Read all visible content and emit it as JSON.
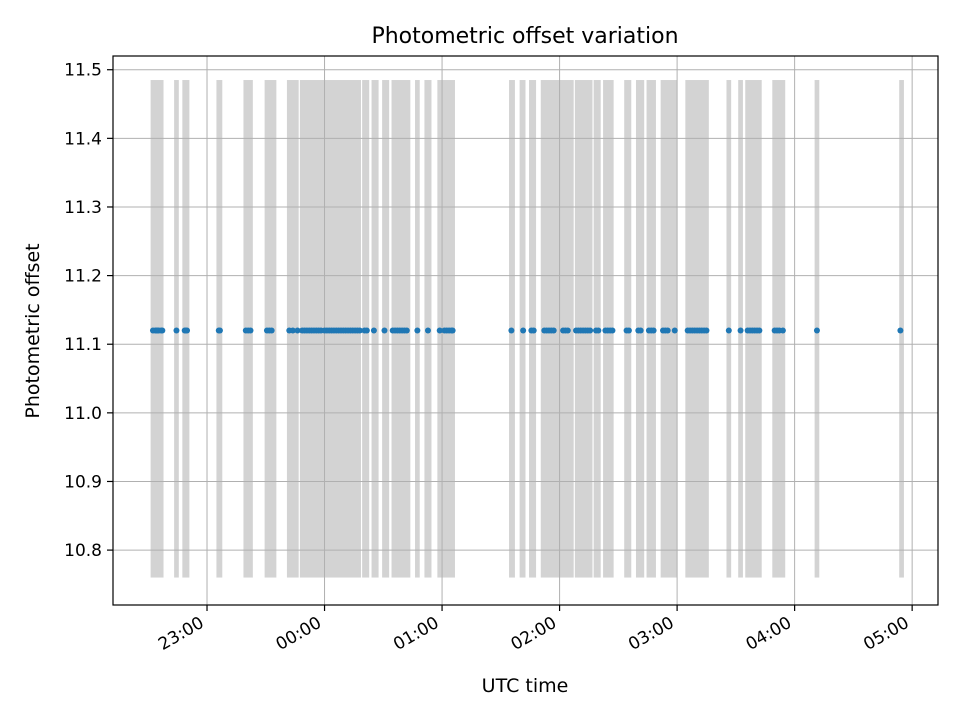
{
  "chart_data": {
    "type": "scatter",
    "title": "Photometric offset variation",
    "xlabel": "UTC time",
    "ylabel": "Photometric offset",
    "x_tick_labels": [
      "23:00",
      "00:00",
      "01:00",
      "02:00",
      "03:00",
      "04:00",
      "05:00"
    ],
    "y_tick_labels": [
      "10.8",
      "10.9",
      "11.0",
      "11.1",
      "11.2",
      "11.3",
      "11.4",
      "11.5"
    ],
    "x_ticks_hours": [
      23,
      24,
      25,
      26,
      27,
      28,
      29
    ],
    "y_ticks": [
      10.8,
      10.9,
      11.0,
      11.1,
      11.2,
      11.3,
      11.4,
      11.5
    ],
    "xlim_hours": [
      22.2,
      29.22
    ],
    "ylim": [
      10.72,
      11.52
    ],
    "band_y_range": [
      10.76,
      11.485
    ],
    "grid": true,
    "marker_color": "#1f77b4",
    "band_color": "#d3d3d3",
    "bands": [
      [
        22.52,
        22.63
      ],
      [
        22.72,
        22.76
      ],
      [
        22.79,
        22.85
      ],
      [
        23.08,
        23.13
      ],
      [
        23.31,
        23.39
      ],
      [
        23.49,
        23.59
      ],
      [
        23.68,
        23.78
      ],
      [
        23.79,
        24.31
      ],
      [
        24.32,
        24.38
      ],
      [
        24.4,
        24.46
      ],
      [
        24.49,
        24.55
      ],
      [
        24.57,
        24.73
      ],
      [
        24.77,
        24.81
      ],
      [
        24.85,
        24.91
      ],
      [
        24.96,
        25.11
      ],
      [
        25.57,
        25.62
      ],
      [
        25.66,
        25.71
      ],
      [
        25.74,
        25.8
      ],
      [
        25.84,
        26.12
      ],
      [
        26.13,
        26.28
      ],
      [
        26.29,
        26.35
      ],
      [
        26.37,
        26.46
      ],
      [
        26.55,
        26.61
      ],
      [
        26.65,
        26.72
      ],
      [
        26.74,
        26.82
      ],
      [
        26.86,
        27.0
      ],
      [
        27.07,
        27.27
      ],
      [
        27.42,
        27.46
      ],
      [
        27.52,
        27.56
      ],
      [
        27.58,
        27.72
      ],
      [
        27.81,
        27.92
      ],
      [
        28.17,
        28.21
      ],
      [
        28.89,
        28.93
      ]
    ],
    "x_hours": [
      22.54,
      22.56,
      22.57,
      22.58,
      22.59,
      22.61,
      22.62,
      22.74,
      22.81,
      22.82,
      22.83,
      23.1,
      23.11,
      23.33,
      23.35,
      23.37,
      23.51,
      23.53,
      23.55,
      23.7,
      23.73,
      23.77,
      23.81,
      23.83,
      23.85,
      23.87,
      23.89,
      23.91,
      23.93,
      23.95,
      23.97,
      24.0,
      24.02,
      24.04,
      24.06,
      24.08,
      24.1,
      24.12,
      24.14,
      24.16,
      24.18,
      24.2,
      24.22,
      24.24,
      24.26,
      24.28,
      24.3,
      24.34,
      24.36,
      24.42,
      24.51,
      24.58,
      24.6,
      24.62,
      24.64,
      24.66,
      24.68,
      24.7,
      24.79,
      24.88,
      24.98,
      25.02,
      25.04,
      25.06,
      25.08,
      25.09,
      25.59,
      25.69,
      25.76,
      25.78,
      25.87,
      25.89,
      25.91,
      25.93,
      25.95,
      26.03,
      26.05,
      26.07,
      26.14,
      26.16,
      26.18,
      26.2,
      26.22,
      26.24,
      26.26,
      26.31,
      26.33,
      26.39,
      26.41,
      26.43,
      26.45,
      26.57,
      26.59,
      26.67,
      26.69,
      26.76,
      26.78,
      26.8,
      26.88,
      26.9,
      26.92,
      26.98,
      27.09,
      27.11,
      27.13,
      27.15,
      27.17,
      27.19,
      27.21,
      27.23,
      27.25,
      27.44,
      27.54,
      27.6,
      27.62,
      27.64,
      27.66,
      27.68,
      27.7,
      27.83,
      27.85,
      27.87,
      27.9,
      28.19,
      28.9
    ],
    "y_value": 11.12
  }
}
